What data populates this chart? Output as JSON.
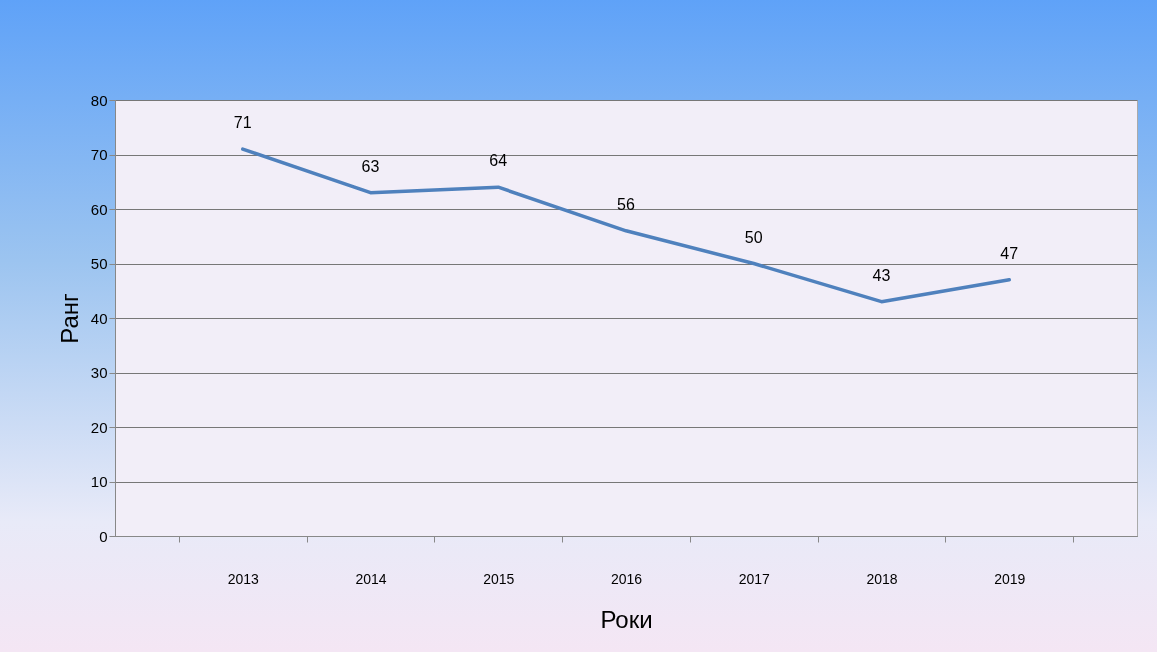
{
  "chart_data": {
    "type": "line",
    "xlabel": "Роки",
    "ylabel": "Ранг",
    "categories": [
      "2013",
      "2014",
      "2015",
      "2016",
      "2017",
      "2018",
      "2019"
    ],
    "series": [
      {
        "color": "#4f81bd",
        "values": [
          71,
          63,
          64,
          56,
          50,
          43,
          47
        ]
      }
    ],
    "ylim": [
      0,
      80
    ],
    "yticks": [
      0,
      10,
      20,
      30,
      40,
      50,
      60,
      70,
      80
    ],
    "grid": "y",
    "data_labels": true,
    "marker": "none"
  }
}
